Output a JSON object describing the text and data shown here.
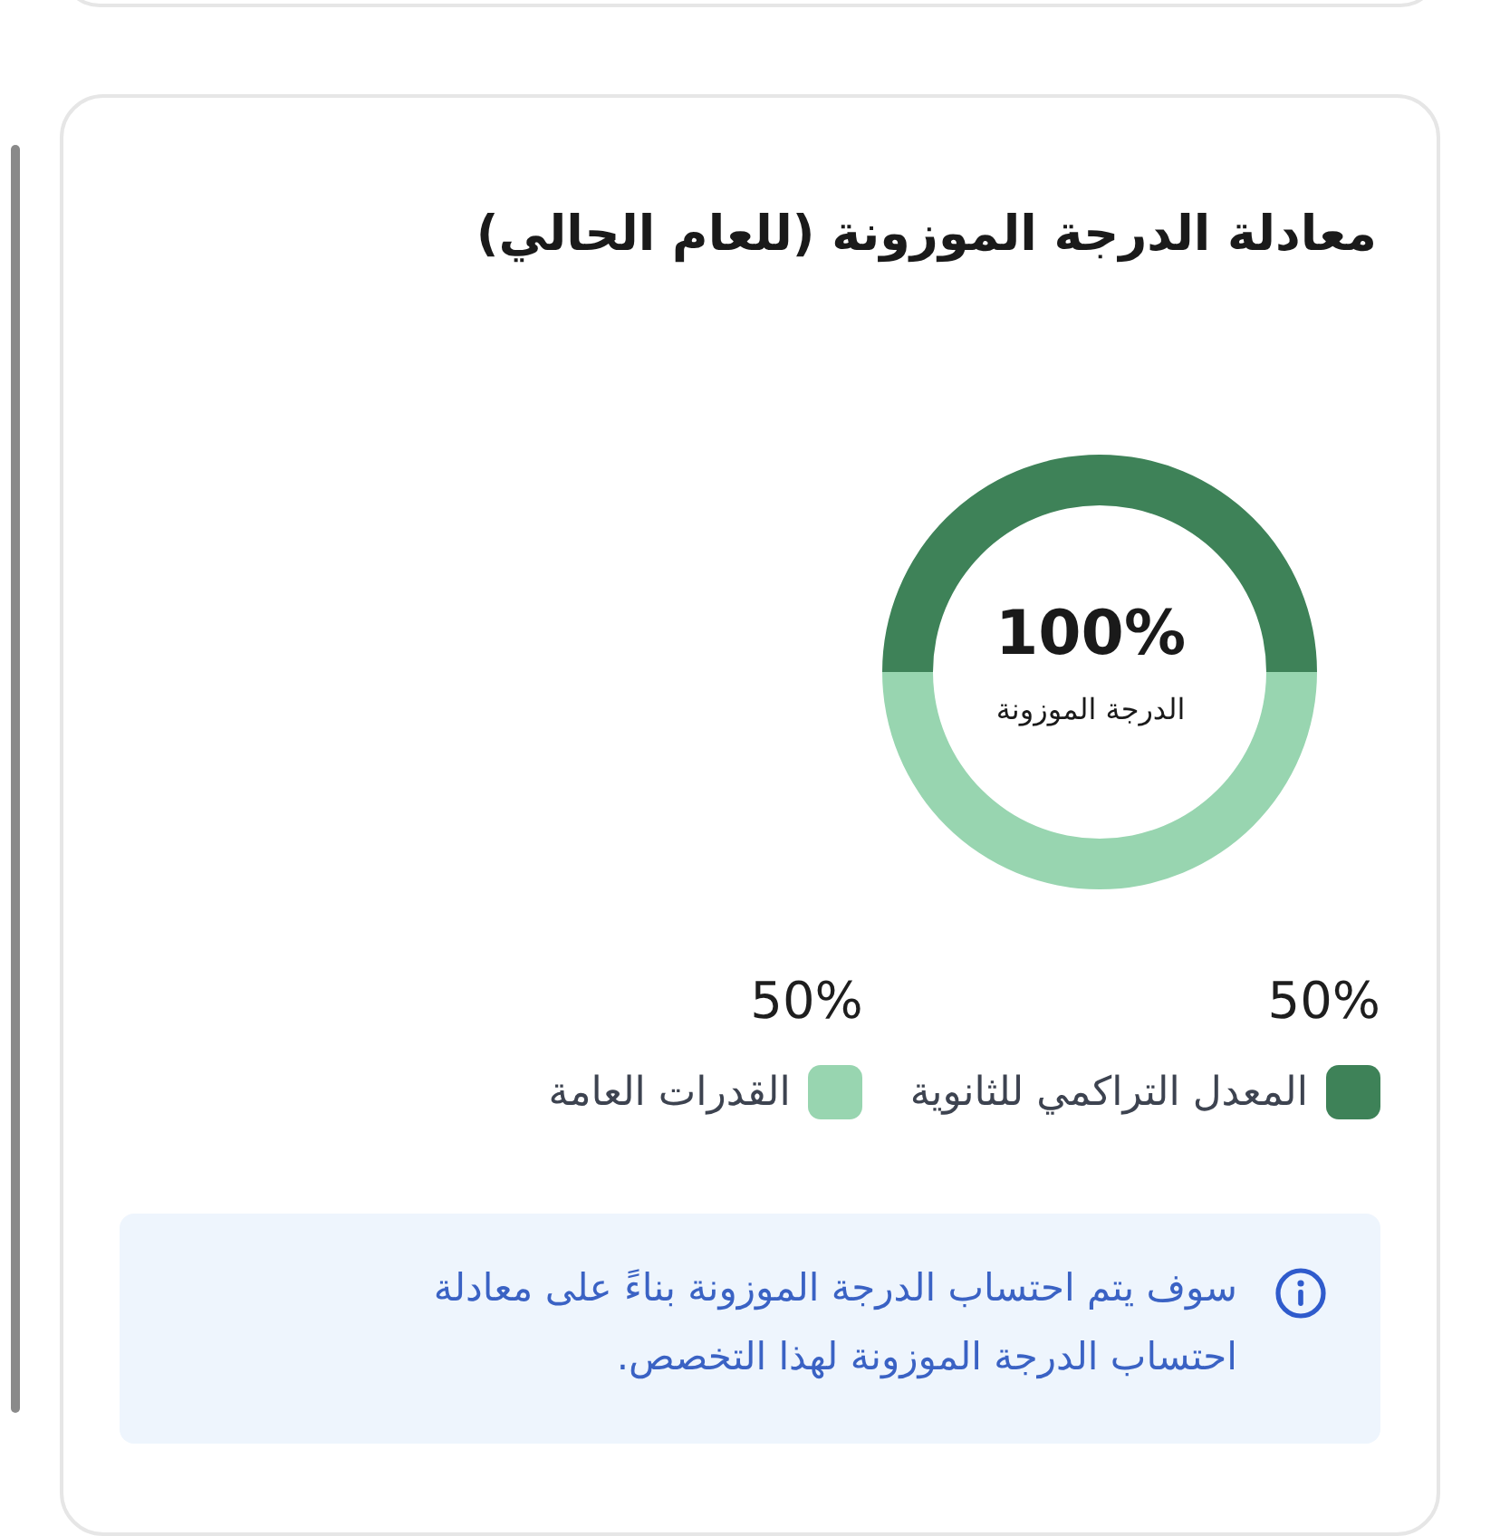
{
  "chart_data": {
    "type": "donut",
    "title": "معادلة الدرجة الموزونة (للعام الحالي)",
    "categories": [
      "المعدل التراكمي للثانوية",
      "القدرات العامة"
    ],
    "values": [
      50,
      50
    ],
    "colors": [
      "#3e8258",
      "#98d5b0"
    ],
    "value_labels": [
      "50%",
      "50%"
    ],
    "legend": "bottom",
    "annotations": [
      "100%",
      "الدرجة الموزونة",
      "سوف يتم احتساب الدرجة الموزونة بناءً على معادلة احتساب الدرجة الموزونة لهذا التخصص."
    ]
  }
}
